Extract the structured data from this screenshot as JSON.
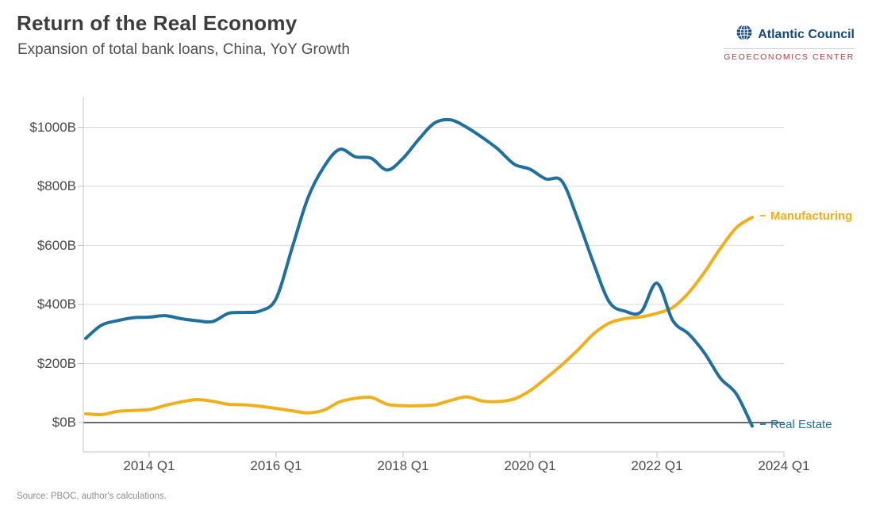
{
  "chart_data": {
    "type": "line",
    "title": "Return of the Real Economy",
    "subtitle": "Expansion of total bank loans, China, YoY Growth",
    "x_start": "2013 Q1",
    "x_end": "2023 Q3",
    "x_frequency": "quarterly",
    "x_tick_labels": [
      "2014 Q1",
      "2016 Q1",
      "2018 Q1",
      "2020 Q1",
      "2022 Q1",
      "2024 Q1"
    ],
    "y_tick_labels": [
      "$1000B",
      "$800B",
      "$600B",
      "$400B",
      "$200B",
      "$0B"
    ],
    "y_tick_values": [
      1000,
      800,
      600,
      400,
      200,
      0
    ],
    "ylim": [
      -100,
      1100
    ],
    "grid": "horizontal",
    "legend": "end-of-line-labels",
    "series": [
      {
        "name": "Manufacturing",
        "color": "#efb01c",
        "values": [
          30,
          27,
          38,
          41,
          44,
          58,
          70,
          78,
          72,
          62,
          60,
          55,
          48,
          40,
          33,
          42,
          70,
          82,
          85,
          62,
          57,
          57,
          60,
          75,
          87,
          73,
          71,
          80,
          108,
          150,
          195,
          245,
          300,
          337,
          352,
          358,
          370,
          390,
          440,
          510,
          590,
          660,
          695
        ]
      },
      {
        "name": "Real Estate",
        "color": "#1f6f9f",
        "values": [
          285,
          330,
          345,
          355,
          357,
          362,
          352,
          345,
          342,
          370,
          373,
          378,
          420,
          590,
          760,
          865,
          925,
          900,
          895,
          855,
          895,
          960,
          1015,
          1025,
          1000,
          965,
          925,
          875,
          858,
          825,
          818,
          690,
          540,
          408,
          377,
          375,
          472,
          345,
          300,
          235,
          150,
          97,
          -12
        ]
      }
    ]
  },
  "logo": {
    "org": "Atlantic Council",
    "center": "GEOECONOMICS CENTER"
  },
  "footer": {
    "source": "Source: PBOC, author's calculations."
  }
}
